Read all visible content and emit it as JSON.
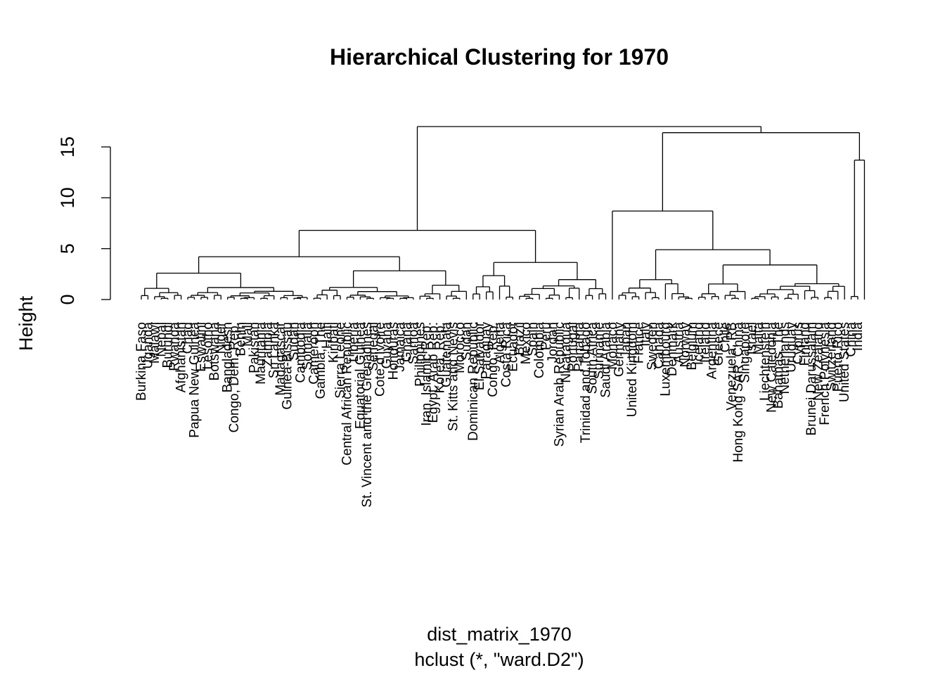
{
  "chart_data": {
    "type": "dendrogram",
    "title": "Hierarchical Clustering for 1970",
    "ylabel": "Height",
    "xlabel": "dist_matrix_1970",
    "sub": "hclust (*, \"ward.D2\")",
    "ylim": [
      0,
      17
    ],
    "yticks": [
      0,
      5,
      10,
      15
    ],
    "top_merge": {
      "height": 17.0,
      "left_cluster_height": 6.8,
      "right_cluster_height": 16.4
    },
    "leaf_labels": [
      "Burkina Faso",
      "Uganda",
      "Malawi",
      "Nepal",
      "Burundi",
      "Rwanda",
      "Afghanistan",
      "Chad",
      "Papua New Guinea",
      "Eswatini",
      "Lesotho",
      "Botswana",
      "Niger",
      "Bangladesh",
      "Congo, Dem. Rep.",
      "Benin",
      "Mali",
      "Pakistan",
      "Mauritania",
      "Zambia",
      "Sri Lanka",
      "Madagascar",
      "Guinea-Bissau",
      "Sudan",
      "Cambodia",
      "Somalia",
      "Cameroon",
      "Gambia, The",
      "Haiti",
      "Kiribati",
      "Sierra Leone",
      "Central African Republic",
      "Liberia",
      "Equatorial Guinea",
      "St. Vincent and the Grenadines",
      "Senegal",
      "Cote d'Ivoire",
      "Guyana",
      "Honduras",
      "Jamaica",
      "Ghana",
      "Samoa",
      "Philippines",
      "Iran, Islamic Rep.",
      "Egypt, Arab Rep.",
      "Korea, Rep.",
      "Guatemala",
      "St. Kitts and Nevis",
      "Morocco",
      "Sudan",
      "Dominican Republic",
      "El Salvador",
      "Paraguay",
      "Congo, Rep.",
      "Algeria",
      "Costa Rica",
      "Ecuador",
      "Brazil",
      "Mexico",
      "Spain",
      "Colombia",
      "Peru",
      "Jordan",
      "Syrian Arab Republic",
      "Nicaragua",
      "Portugal",
      "Panama",
      "Trinidad and Tobago",
      "South Africa",
      "Suriname",
      "Saudi Arabia",
      "Monaco",
      "Germany",
      "Japan",
      "United Kingdom",
      "France",
      "Italy",
      "Sweden",
      "Canada",
      "Luxembourg",
      "Denmark",
      "Austria",
      "Norway",
      "Belgium",
      "Iceland",
      "Ireland",
      "Argentina",
      "Greece",
      "Chile",
      "Venezuela, RB",
      "Hong Kong SAR, China",
      "Singapore",
      "Israel",
      "Malta",
      "Liechtenstein",
      "New Caledonia",
      "Bahamas, The",
      "Netherlands",
      "Uruguay",
      "Cyprus",
      "Finland",
      "Brunei Darussalam",
      "New Zealand",
      "French Polynesia",
      "Switzerland",
      "Puerto Rico",
      "United States",
      "China",
      "India"
    ]
  }
}
